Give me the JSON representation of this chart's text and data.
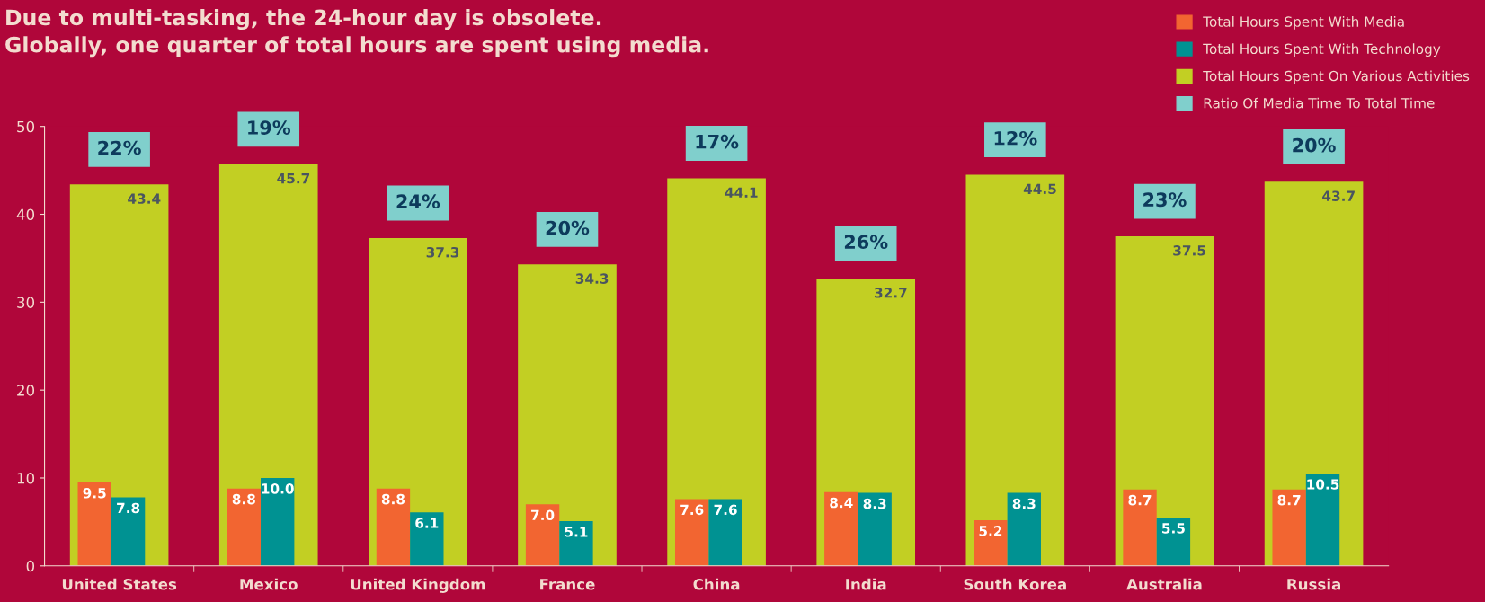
{
  "chart_data": {
    "type": "bar",
    "title": "Due to multi-tasking, the 24-hour day is obsolete.\nGlobally, one quarter of total hours are spent using media.",
    "categories": [
      "United States",
      "Mexico",
      "United Kingdom",
      "France",
      "China",
      "India",
      "South Korea",
      "Australia",
      "Russia"
    ],
    "series": [
      {
        "name": "Total Hours Spent With Media",
        "color": "#f26531",
        "values": [
          9.5,
          8.8,
          8.8,
          7.0,
          7.6,
          8.4,
          5.2,
          8.7,
          8.7
        ],
        "value_labels": [
          "9.5",
          "8.8",
          "8.8",
          "7.0",
          "7.6",
          "8.4",
          "5.2",
          "8.7",
          "8.7"
        ]
      },
      {
        "name": "Total Hours Spent With Technology",
        "color": "#009292",
        "values": [
          7.8,
          10.0,
          6.1,
          5.1,
          7.6,
          8.3,
          8.3,
          5.5,
          10.5
        ],
        "value_labels": [
          "7.8",
          "10.0",
          "6.1",
          "5.1",
          "7.6",
          "8.3",
          "8.3",
          "5.5",
          "10.5"
        ]
      },
      {
        "name": "Total Hours Spent On Various Activities",
        "color": "#c2cf23",
        "values": [
          43.4,
          45.7,
          37.3,
          34.3,
          44.1,
          32.7,
          44.5,
          37.5,
          43.7
        ],
        "value_labels": [
          "43.4",
          "45.7",
          "37.3",
          "34.3",
          "44.1",
          "32.7",
          "44.5",
          "37.5",
          "43.7"
        ]
      },
      {
        "name": "Ratio Of Media Time To Total Time",
        "color": "#80cfcc",
        "type": "scatter",
        "values": [
          null,
          null,
          null,
          null,
          null,
          null,
          null,
          null,
          null
        ]
      }
    ],
    "annotations": [
      {
        "text": "22%",
        "x": "United States",
        "y": 43.4
      },
      {
        "text": "19%",
        "x": "Mexico",
        "y": 45.7
      },
      {
        "text": "24%",
        "x": "United Kingdom",
        "y": 37.3
      },
      {
        "text": "20%",
        "x": "France",
        "y": 34.3
      },
      {
        "text": "17%",
        "x": "China",
        "y": 44.1
      },
      {
        "text": "26%",
        "x": "India",
        "y": 32.7
      },
      {
        "text": "12%",
        "x": "South Korea",
        "y": 44.5
      },
      {
        "text": "23%",
        "x": "Australia",
        "y": 37.5
      },
      {
        "text": "20%",
        "x": "Russia",
        "y": 43.7
      }
    ],
    "ylim": [
      0,
      50
    ],
    "yticks": [
      0,
      10,
      20,
      30,
      40,
      50
    ],
    "grid": false,
    "legend": "top right"
  }
}
